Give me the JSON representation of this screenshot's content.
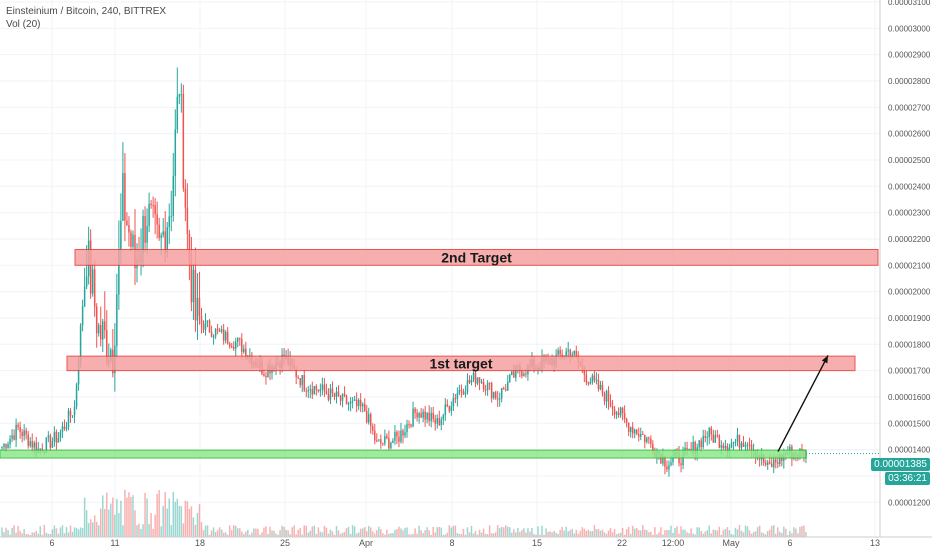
{
  "legend": {
    "symbol_line": "Einsteinium / Bitcoin, 240, BITTREX",
    "volume_line": "Vol (20)"
  },
  "price_tags": {
    "last_price": "0.00001385",
    "countdown": "03:36:21"
  },
  "colors": {
    "up": "#26a69a",
    "down": "#ef5350",
    "target_fill": "#f5a0a0",
    "target_border": "#e53935",
    "support_fill": "#8ee88e",
    "support_border": "#2eb82e",
    "price_tag_bg": "#26a69a"
  },
  "chart_data": {
    "type": "candlestick",
    "title": "Einsteinium / Bitcoin, 240, BITTREX",
    "y_axis": {
      "min": 1.125e-05,
      "max": 3.1e-05,
      "ticks": [
        "0.00003100",
        "0.00003000",
        "0.00002900",
        "0.00002800",
        "0.00002700",
        "0.00002600",
        "0.00002500",
        "0.00002400",
        "0.00002300",
        "0.00002200",
        "0.00002100",
        "0.00002000",
        "0.00001900",
        "0.00001800",
        "0.00001700",
        "0.00001600",
        "0.00001500",
        "0.00001400",
        "0.00001300",
        "0.00001200"
      ]
    },
    "x_axis": {
      "tick_labels": [
        "6",
        "11",
        "18",
        "25",
        "Apr",
        "8",
        "15",
        "22",
        "12:00",
        "May",
        "6",
        "13"
      ]
    },
    "annotations": [
      {
        "label": "2nd Target",
        "y_low": 2.1e-05,
        "y_high": 2.16e-05
      },
      {
        "label": "1st target",
        "y_low": 1.7e-05,
        "y_high": 1.755e-05
      },
      {
        "label": "",
        "y_low": 1.368e-05,
        "y_high": 1.398e-05
      }
    ],
    "arrow": {
      "from_price": 1.385e-05,
      "to_price": 1.75e-05
    },
    "last_price": 1.385e-05,
    "series": [
      {
        "name": "close",
        "anchors": [
          [
            0,
            1.41e-05
          ],
          [
            8,
            1.48e-05
          ],
          [
            18,
            1.4e-05
          ],
          [
            28,
            1.45e-05
          ],
          [
            36,
            1.56e-05
          ],
          [
            42,
            2.15e-05
          ],
          [
            48,
            1.85e-05
          ],
          [
            55,
            1.78e-05
          ],
          [
            60,
            2.35e-05
          ],
          [
            66,
            2.1e-05
          ],
          [
            72,
            2.3e-05
          ],
          [
            78,
            2.15e-05
          ],
          [
            84,
            2.35e-05
          ],
          [
            88,
            2.8e-05
          ],
          [
            92,
            2.2e-05
          ],
          [
            96,
            1.9e-05
          ],
          [
            105,
            1.85e-05
          ],
          [
            118,
            1.8e-05
          ],
          [
            130,
            1.7e-05
          ],
          [
            140,
            1.75e-05
          ],
          [
            150,
            1.65e-05
          ],
          [
            160,
            1.62e-05
          ],
          [
            170,
            1.58e-05
          ],
          [
            180,
            1.55e-05
          ],
          [
            186,
            1.42e-05
          ],
          [
            196,
            1.44e-05
          ],
          [
            206,
            1.55e-05
          ],
          [
            216,
            1.5e-05
          ],
          [
            226,
            1.62e-05
          ],
          [
            236,
            1.68e-05
          ],
          [
            246,
            1.6e-05
          ],
          [
            256,
            1.7e-05
          ],
          [
            266,
            1.72e-05
          ],
          [
            276,
            1.75e-05
          ],
          [
            282,
            1.78e-05
          ],
          [
            290,
            1.68e-05
          ],
          [
            300,
            1.6e-05
          ],
          [
            310,
            1.5e-05
          ],
          [
            320,
            1.44e-05
          ],
          [
            330,
            1.35e-05
          ],
          [
            340,
            1.38e-05
          ],
          [
            350,
            1.46e-05
          ],
          [
            360,
            1.42e-05
          ],
          [
            370,
            1.44e-05
          ],
          [
            380,
            1.33e-05
          ],
          [
            390,
            1.39e-05
          ],
          [
            398,
            1.385e-05
          ]
        ]
      }
    ]
  }
}
